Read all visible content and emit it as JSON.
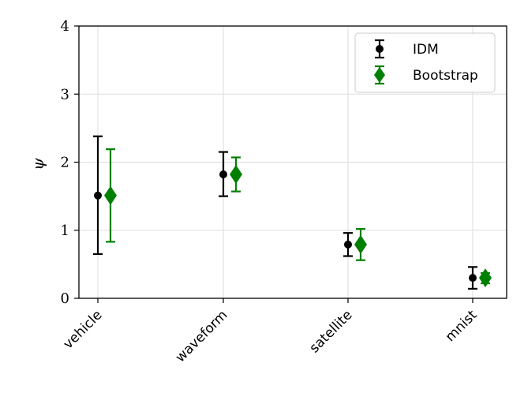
{
  "chart_data": {
    "type": "errorbar",
    "title": "",
    "xlabel": "",
    "ylabel": "ψ",
    "categories": [
      "vehicle",
      "waveform",
      "satellite",
      "mnist"
    ],
    "ylim": [
      0,
      4
    ],
    "yticks": [
      "0",
      "1",
      "2",
      "3",
      "4"
    ],
    "grid": true,
    "legend_position": "top-right",
    "series": [
      {
        "name": "IDM",
        "color": "#000000",
        "marker": "circle",
        "values": [
          1.51,
          1.82,
          0.79,
          0.3
        ],
        "lower": [
          0.65,
          1.5,
          0.62,
          0.14
        ],
        "upper": [
          2.38,
          2.15,
          0.96,
          0.46
        ]
      },
      {
        "name": "Bootstrap",
        "color": "#008000",
        "marker": "diamond",
        "values": [
          1.51,
          1.82,
          0.79,
          0.3
        ],
        "lower": [
          0.83,
          1.57,
          0.56,
          0.22
        ],
        "upper": [
          2.19,
          2.07,
          1.02,
          0.37
        ]
      }
    ]
  }
}
